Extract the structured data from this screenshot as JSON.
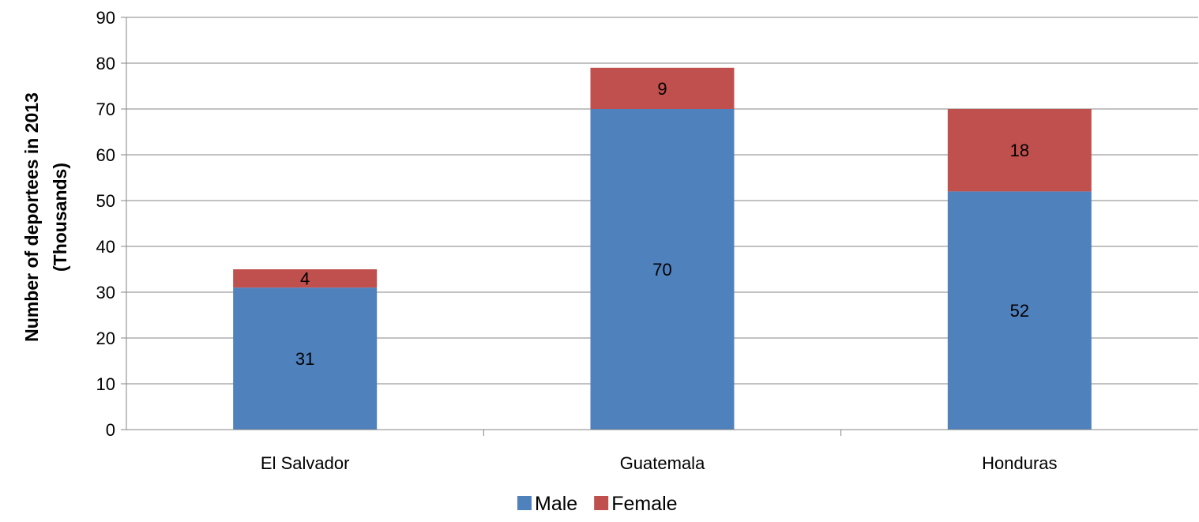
{
  "chart_data": {
    "type": "bar",
    "stacked": true,
    "categories": [
      "El Salvador",
      "Guatemala",
      "Honduras"
    ],
    "series": [
      {
        "name": "Male",
        "values": [
          31,
          70,
          52
        ],
        "color": "#4F81BD"
      },
      {
        "name": "Female",
        "values": [
          4,
          9,
          18
        ],
        "color": "#C0504D"
      }
    ],
    "ylabel": [
      "Number of deportees in 2013",
      "(Thousands)"
    ],
    "xlabel": "",
    "ylim": [
      0,
      90
    ],
    "yticks": [
      0,
      10,
      20,
      30,
      40,
      50,
      60,
      70,
      80,
      90
    ],
    "grid": true,
    "legend": "bottom"
  }
}
